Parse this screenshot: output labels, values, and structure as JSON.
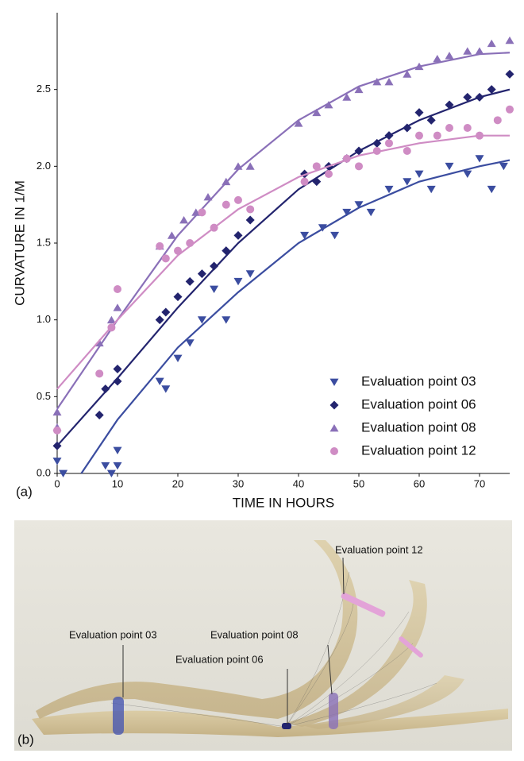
{
  "chart_data": {
    "type": "scatter",
    "panel_label": "(a)",
    "x_label": "TIME IN HOURS",
    "y_label": "CURVATURE IN 1/M",
    "xlim": [
      0,
      75
    ],
    "ylim": [
      0,
      3.0
    ],
    "xticks": [
      0,
      10,
      20,
      30,
      40,
      50,
      60,
      70
    ],
    "yticks": [
      {
        "value": 0,
        "label": "0.0"
      },
      0.5,
      {
        "value": 1,
        "label": "1.0"
      },
      1.5,
      {
        "value": 2,
        "label": "2.0"
      },
      2.5
    ],
    "legend": "lower right",
    "series": [
      {
        "name": "Evaluation point 03",
        "color": "#3b4da0",
        "marker": "triangle-down",
        "x": [
          0,
          1,
          8,
          9,
          10,
          10,
          17,
          18,
          20,
          22,
          24,
          26,
          28,
          30,
          32,
          41,
          44,
          46,
          48,
          50,
          52,
          55,
          58,
          60,
          62,
          65,
          68,
          70,
          72,
          74
        ],
        "values": [
          0.08,
          0.0,
          0.05,
          0.0,
          0.05,
          0.15,
          0.6,
          0.55,
          0.75,
          0.85,
          1.0,
          1.2,
          1.0,
          1.25,
          1.3,
          1.55,
          1.6,
          1.55,
          1.7,
          1.75,
          1.7,
          1.85,
          1.9,
          1.95,
          1.85,
          2.0,
          1.95,
          2.05,
          1.85,
          2.0
        ],
        "fit": {
          "x": [
            4,
            10,
            20,
            30,
            40,
            50,
            60,
            70,
            75
          ],
          "values": [
            0,
            0.35,
            0.82,
            1.18,
            1.5,
            1.73,
            1.9,
            2.0,
            2.04
          ]
        }
      },
      {
        "name": "Evaluation point 06",
        "color": "#23246e",
        "marker": "diamond",
        "x": [
          0,
          7,
          8,
          10,
          10,
          17,
          18,
          20,
          22,
          24,
          26,
          28,
          30,
          32,
          41,
          43,
          45,
          48,
          50,
          53,
          55,
          58,
          60,
          62,
          65,
          68,
          70,
          72,
          75
        ],
        "values": [
          0.18,
          0.38,
          0.55,
          0.6,
          0.68,
          1.0,
          1.05,
          1.15,
          1.25,
          1.3,
          1.35,
          1.45,
          1.55,
          1.65,
          1.95,
          1.9,
          2.0,
          2.05,
          2.1,
          2.15,
          2.2,
          2.25,
          2.35,
          2.3,
          2.4,
          2.45,
          2.45,
          2.5,
          2.6
        ],
        "fit": {
          "x": [
            0,
            10,
            20,
            30,
            40,
            50,
            60,
            70,
            75
          ],
          "values": [
            0.18,
            0.62,
            1.08,
            1.5,
            1.85,
            2.1,
            2.3,
            2.45,
            2.5
          ]
        }
      },
      {
        "name": "Evaluation point 08",
        "color": "#8a70b8",
        "marker": "triangle-up",
        "x": [
          0,
          0,
          7,
          9,
          10,
          17,
          19,
          21,
          23,
          25,
          28,
          30,
          32,
          40,
          43,
          45,
          48,
          50,
          53,
          55,
          58,
          60,
          63,
          65,
          68,
          70,
          72,
          75
        ],
        "values": [
          0.4,
          0.3,
          0.85,
          1.0,
          1.08,
          1.48,
          1.55,
          1.65,
          1.7,
          1.8,
          1.9,
          2.0,
          2.0,
          2.28,
          2.35,
          2.4,
          2.45,
          2.5,
          2.55,
          2.55,
          2.6,
          2.65,
          2.7,
          2.72,
          2.75,
          2.75,
          2.8,
          2.82
        ],
        "fit": {
          "x": [
            0,
            10,
            20,
            30,
            40,
            50,
            60,
            70,
            75
          ],
          "values": [
            0.42,
            1.0,
            1.55,
            1.98,
            2.3,
            2.52,
            2.65,
            2.73,
            2.74
          ]
        }
      },
      {
        "name": "Evaluation point 12",
        "color": "#cf8cc4",
        "marker": "circle",
        "x": [
          0,
          7,
          9,
          10,
          17,
          18,
          20,
          22,
          24,
          26,
          28,
          30,
          32,
          41,
          43,
          45,
          48,
          50,
          53,
          55,
          58,
          60,
          63,
          65,
          68,
          70,
          73,
          75
        ],
        "values": [
          0.28,
          0.65,
          0.95,
          1.2,
          1.48,
          1.4,
          1.45,
          1.5,
          1.7,
          1.6,
          1.75,
          1.78,
          1.72,
          1.9,
          2.0,
          1.95,
          2.05,
          2.0,
          2.1,
          2.15,
          2.1,
          2.2,
          2.2,
          2.25,
          2.25,
          2.2,
          2.3,
          2.37
        ],
        "fit": {
          "x": [
            0,
            10,
            20,
            30,
            40,
            50,
            60,
            70,
            75
          ],
          "values": [
            0.55,
            1.0,
            1.42,
            1.72,
            1.93,
            2.07,
            2.15,
            2.2,
            2.2
          ]
        }
      }
    ]
  },
  "photo": {
    "panel_label": "(b)",
    "labels": [
      "Evaluation point 03",
      "Evaluation point 06",
      "Evaluation point 08",
      "Evaluation point 12"
    ]
  }
}
